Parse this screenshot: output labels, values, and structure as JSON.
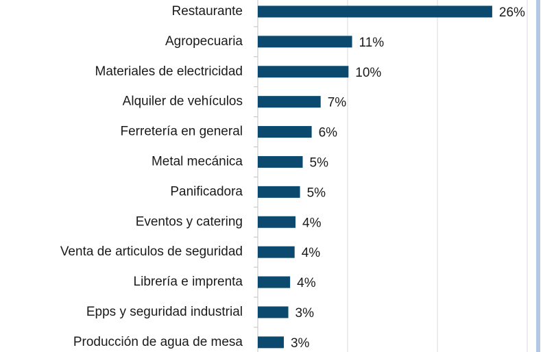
{
  "chart_data": {
    "type": "bar",
    "orientation": "horizontal",
    "categories": [
      "Restaurante",
      "Agropecuaria",
      "Materiales de electricidad",
      "Alquiler de vehículos",
      "Ferretería en general",
      "Metal mecánica",
      "Panificadora",
      "Eventos y catering",
      "Venta de articulos de seguridad",
      "Librería e imprenta",
      "Epps y seguridad industrial",
      "Producción de agua de mesa"
    ],
    "values": [
      26.1,
      10.5,
      10.1,
      7.0,
      6.0,
      5.0,
      4.7,
      4.2,
      4.1,
      3.6,
      3.4,
      2.9
    ],
    "value_labels": [
      "26%",
      "11%",
      "10%",
      "7%",
      "6%",
      "5%",
      "5%",
      "4%",
      "4%",
      "4%",
      "3%",
      "3%"
    ],
    "color": "#0b4a6e",
    "xlim": [
      0,
      30
    ],
    "xticks": [
      0,
      10,
      20,
      30
    ],
    "grid": true
  }
}
